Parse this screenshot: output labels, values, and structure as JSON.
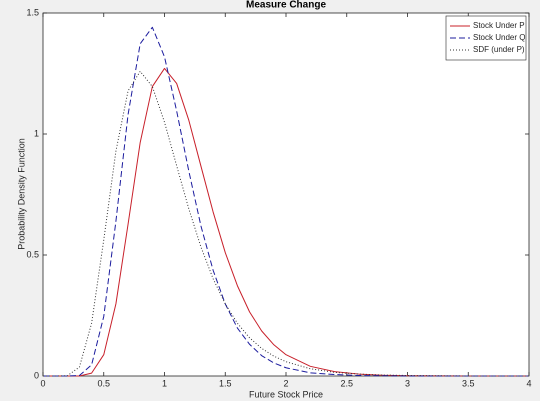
{
  "chart_data": {
    "type": "line",
    "title": "Measure Change",
    "x_label": "Future Stock Price",
    "y_label": "Probability Density Function",
    "x": [
      0,
      0.1,
      0.2,
      0.3,
      0.4,
      0.5,
      0.6,
      0.7,
      0.8,
      0.9,
      1.0,
      1.1,
      1.2,
      1.3,
      1.4,
      1.5,
      1.6,
      1.7,
      1.8,
      1.9,
      2.0,
      2.2,
      2.4,
      2.6,
      2.8,
      3.0,
      3.5,
      4.0
    ],
    "series": [
      {
        "name": "Stock Under P",
        "color": "#c8202a",
        "dash": "solid",
        "values": [
          0,
          0,
          0,
          0,
          0.012,
          0.088,
          0.298,
          0.627,
          0.965,
          1.196,
          1.271,
          1.209,
          1.057,
          0.867,
          0.678,
          0.51,
          0.373,
          0.265,
          0.186,
          0.129,
          0.088,
          0.04,
          0.018,
          0.008,
          0.003,
          0.001,
          0,
          0
        ]
      },
      {
        "name": "Stock Under Q",
        "color": "#1c1c9e",
        "dash": "dashed",
        "values": [
          0,
          0,
          0,
          0.002,
          0.046,
          0.246,
          0.639,
          1.08,
          1.373,
          1.441,
          1.319,
          1.095,
          0.847,
          0.62,
          0.437,
          0.298,
          0.198,
          0.131,
          0.084,
          0.054,
          0.034,
          0.013,
          0.006,
          0.002,
          0.001,
          0,
          0,
          0
        ]
      },
      {
        "name": "SDF (under P)",
        "color": "#333333",
        "dash": "dotted",
        "values": [
          0,
          0,
          0.001,
          0.037,
          0.218,
          0.562,
          0.929,
          1.178,
          1.259,
          1.196,
          1.049,
          0.869,
          0.691,
          0.533,
          0.402,
          0.298,
          0.218,
          0.158,
          0.114,
          0.082,
          0.059,
          0.03,
          0.015,
          0.008,
          0.004,
          0.002,
          0,
          0
        ]
      }
    ],
    "xlim": [
      0,
      4
    ],
    "xticks": [
      0,
      0.5,
      1,
      1.5,
      2,
      2.5,
      3,
      3.5,
      4
    ],
    "ylim": [
      0,
      1.5
    ],
    "yticks": [
      0,
      0.5,
      1,
      1.5
    ],
    "grid": false,
    "legend": "top-right"
  }
}
